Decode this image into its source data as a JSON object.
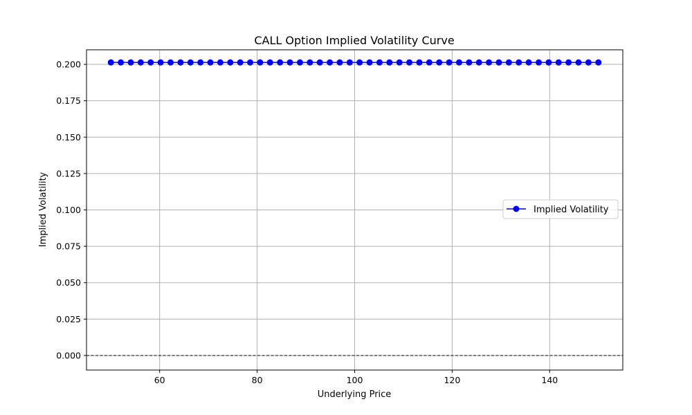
{
  "chart_data": {
    "type": "line",
    "title": "CALL Option Implied Volatility Curve",
    "xlabel": "Underlying Price",
    "ylabel": "Implied Volatility",
    "xlim": [
      45,
      155
    ],
    "ylim": [
      -0.01,
      0.21
    ],
    "xticks": [
      60,
      80,
      100,
      120,
      140
    ],
    "xtick_labels": [
      "60",
      "80",
      "100",
      "120",
      "140"
    ],
    "yticks": [
      0.0,
      0.025,
      0.05,
      0.075,
      0.1,
      0.125,
      0.15,
      0.175,
      0.2
    ],
    "ytick_labels": [
      "0.000",
      "0.025",
      "0.050",
      "0.075",
      "0.100",
      "0.125",
      "0.150",
      "0.175",
      "0.200"
    ],
    "grid": true,
    "legend_position": "center-right",
    "reference_line": {
      "y": 0,
      "style": "dashed",
      "color": "#000000"
    },
    "series": [
      {
        "name": "Implied Volatility",
        "color": "#0000ff",
        "marker": "circle",
        "x": [
          50,
          52.04,
          54.08,
          56.12,
          58.16,
          60.2,
          62.24,
          64.29,
          66.33,
          68.37,
          70.41,
          72.45,
          74.49,
          76.53,
          78.57,
          80.61,
          82.65,
          84.69,
          86.73,
          88.78,
          90.82,
          92.86,
          94.9,
          96.94,
          98.98,
          101.02,
          103.06,
          105.1,
          107.14,
          109.18,
          111.22,
          113.27,
          115.31,
          117.35,
          119.39,
          121.43,
          123.47,
          125.51,
          127.55,
          129.59,
          131.63,
          133.67,
          135.71,
          137.76,
          139.8,
          141.84,
          143.88,
          145.92,
          147.96,
          150
        ],
        "y": [
          0.2013,
          0.2013,
          0.2013,
          0.2013,
          0.2013,
          0.2013,
          0.2013,
          0.2013,
          0.2013,
          0.2013,
          0.2013,
          0.2013,
          0.2013,
          0.2013,
          0.2013,
          0.2013,
          0.2013,
          0.2013,
          0.2013,
          0.2013,
          0.2013,
          0.2013,
          0.2013,
          0.2013,
          0.2013,
          0.2013,
          0.2013,
          0.2013,
          0.2013,
          0.2013,
          0.2013,
          0.2013,
          0.2013,
          0.2013,
          0.2013,
          0.2013,
          0.2013,
          0.2013,
          0.2013,
          0.2013,
          0.2013,
          0.2013,
          0.2013,
          0.2013,
          0.2013,
          0.2013,
          0.2013,
          0.2013,
          0.2013,
          0.2013
        ]
      }
    ]
  }
}
